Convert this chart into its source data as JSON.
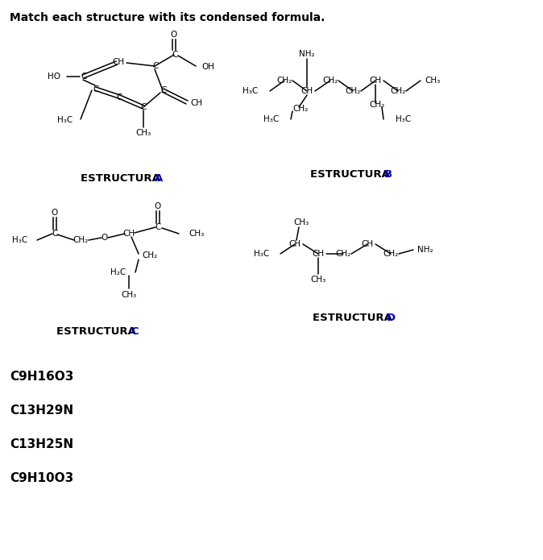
{
  "title": "Match each structure with its condensed formula.",
  "bg_color": "#ffffff",
  "text_color": "#000000",
  "blue_color": "#0000CC",
  "formulas": [
    "C9H16O3",
    "C13H29N",
    "C13H25N",
    "C9H10O3"
  ]
}
